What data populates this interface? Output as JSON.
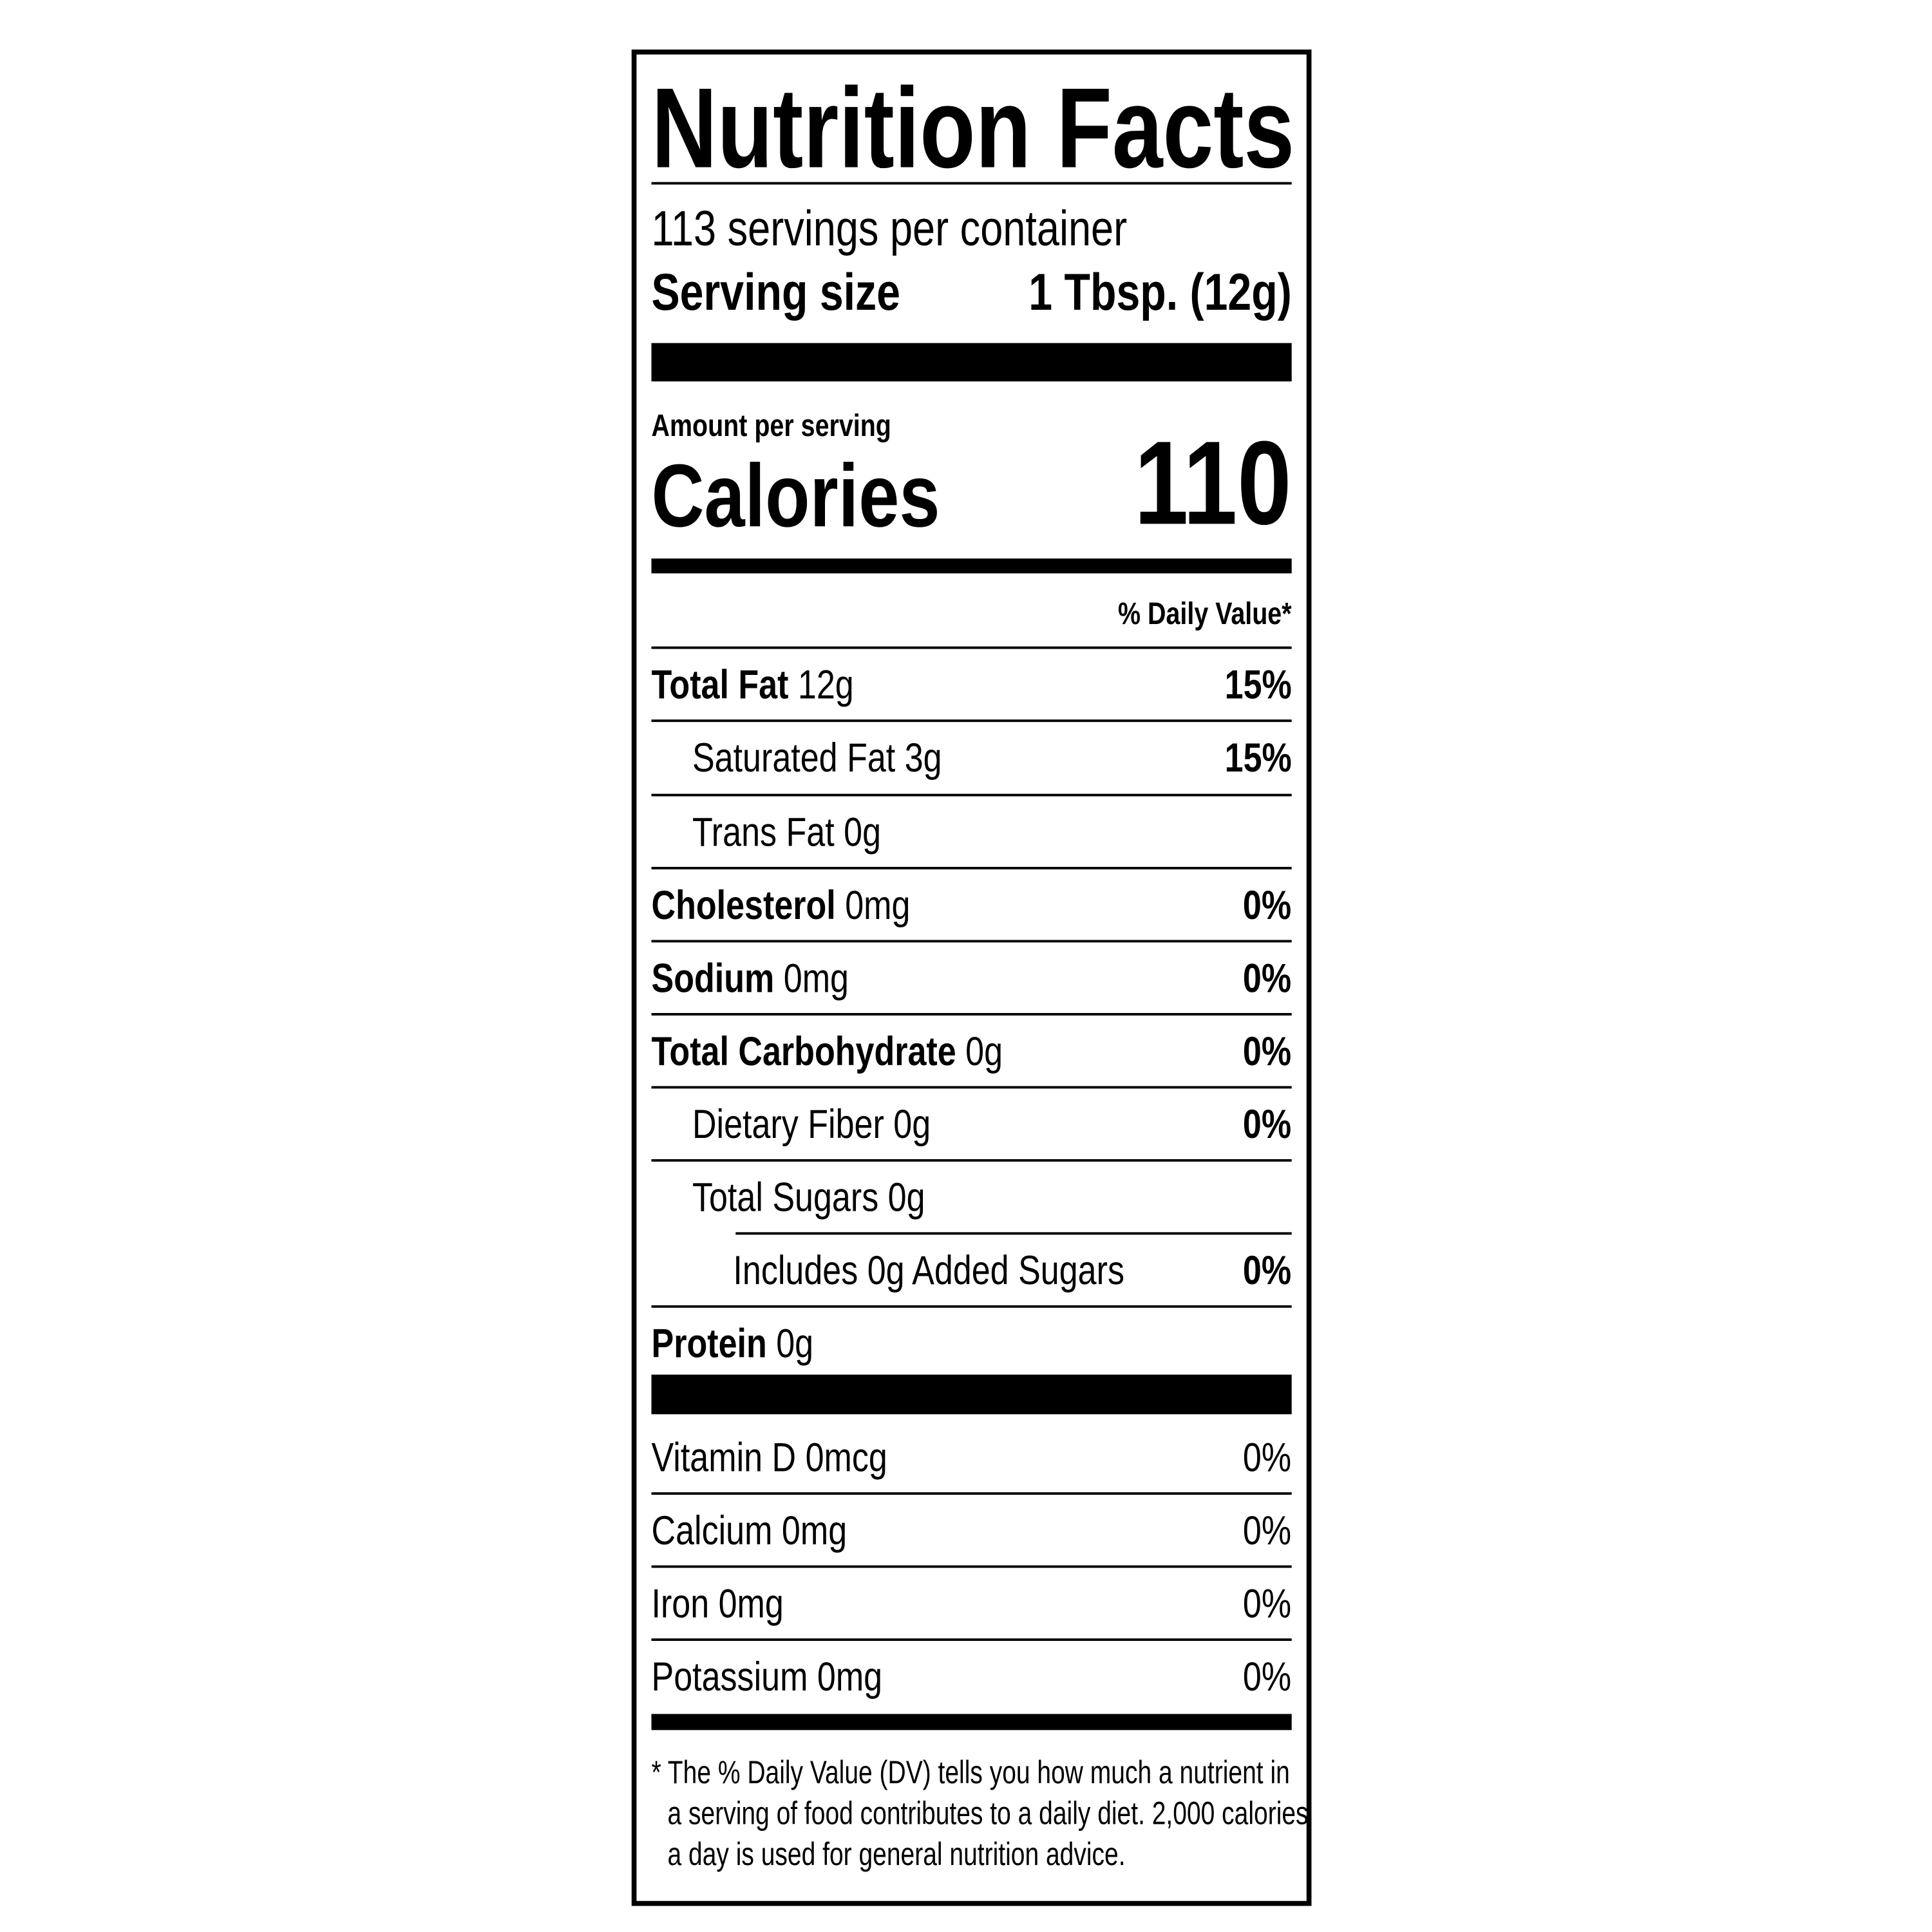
{
  "title": "Nutrition Facts",
  "servings": "113 servings per container",
  "serving_size": {
    "label": "Serving size",
    "value": "1 Tbsp. (12g)"
  },
  "amount_per_serving": "Amount per serving",
  "calories": {
    "label": "Calories",
    "value": "110"
  },
  "dv_header": "% Daily Value*",
  "nutrients": [
    {
      "name": "Total Fat",
      "amount": "12g",
      "dv": "15%"
    },
    {
      "name": "Saturated Fat 3g",
      "dv": "15%"
    },
    {
      "name": "Trans Fat 0g"
    },
    {
      "name": "Cholesterol",
      "amount": "0mg",
      "dv": "0%"
    },
    {
      "name": "Sodium",
      "amount": "0mg",
      "dv": "0%"
    },
    {
      "name": "Total Carbohydrate",
      "amount": "0g",
      "dv": "0%"
    },
    {
      "name": "Dietary Fiber 0g",
      "dv": "0%"
    },
    {
      "name": "Total Sugars 0g"
    },
    {
      "name": "Includes 0g Added Sugars",
      "dv": "0%"
    },
    {
      "name": "Protein",
      "amount": "0g"
    }
  ],
  "vitamins": [
    {
      "name": "Vitamin D 0mcg",
      "dv": "0%"
    },
    {
      "name": "Calcium 0mg",
      "dv": "0%"
    },
    {
      "name": "Iron 0mg",
      "dv": "0%"
    },
    {
      "name": "Potassium 0mg",
      "dv": "0%"
    }
  ],
  "footnote": [
    "* The % Daily Value (DV) tells you how much a nutrient in",
    "a serving of food contributes to a daily diet. 2,000 calories",
    "a day is used for general nutrition advice."
  ]
}
